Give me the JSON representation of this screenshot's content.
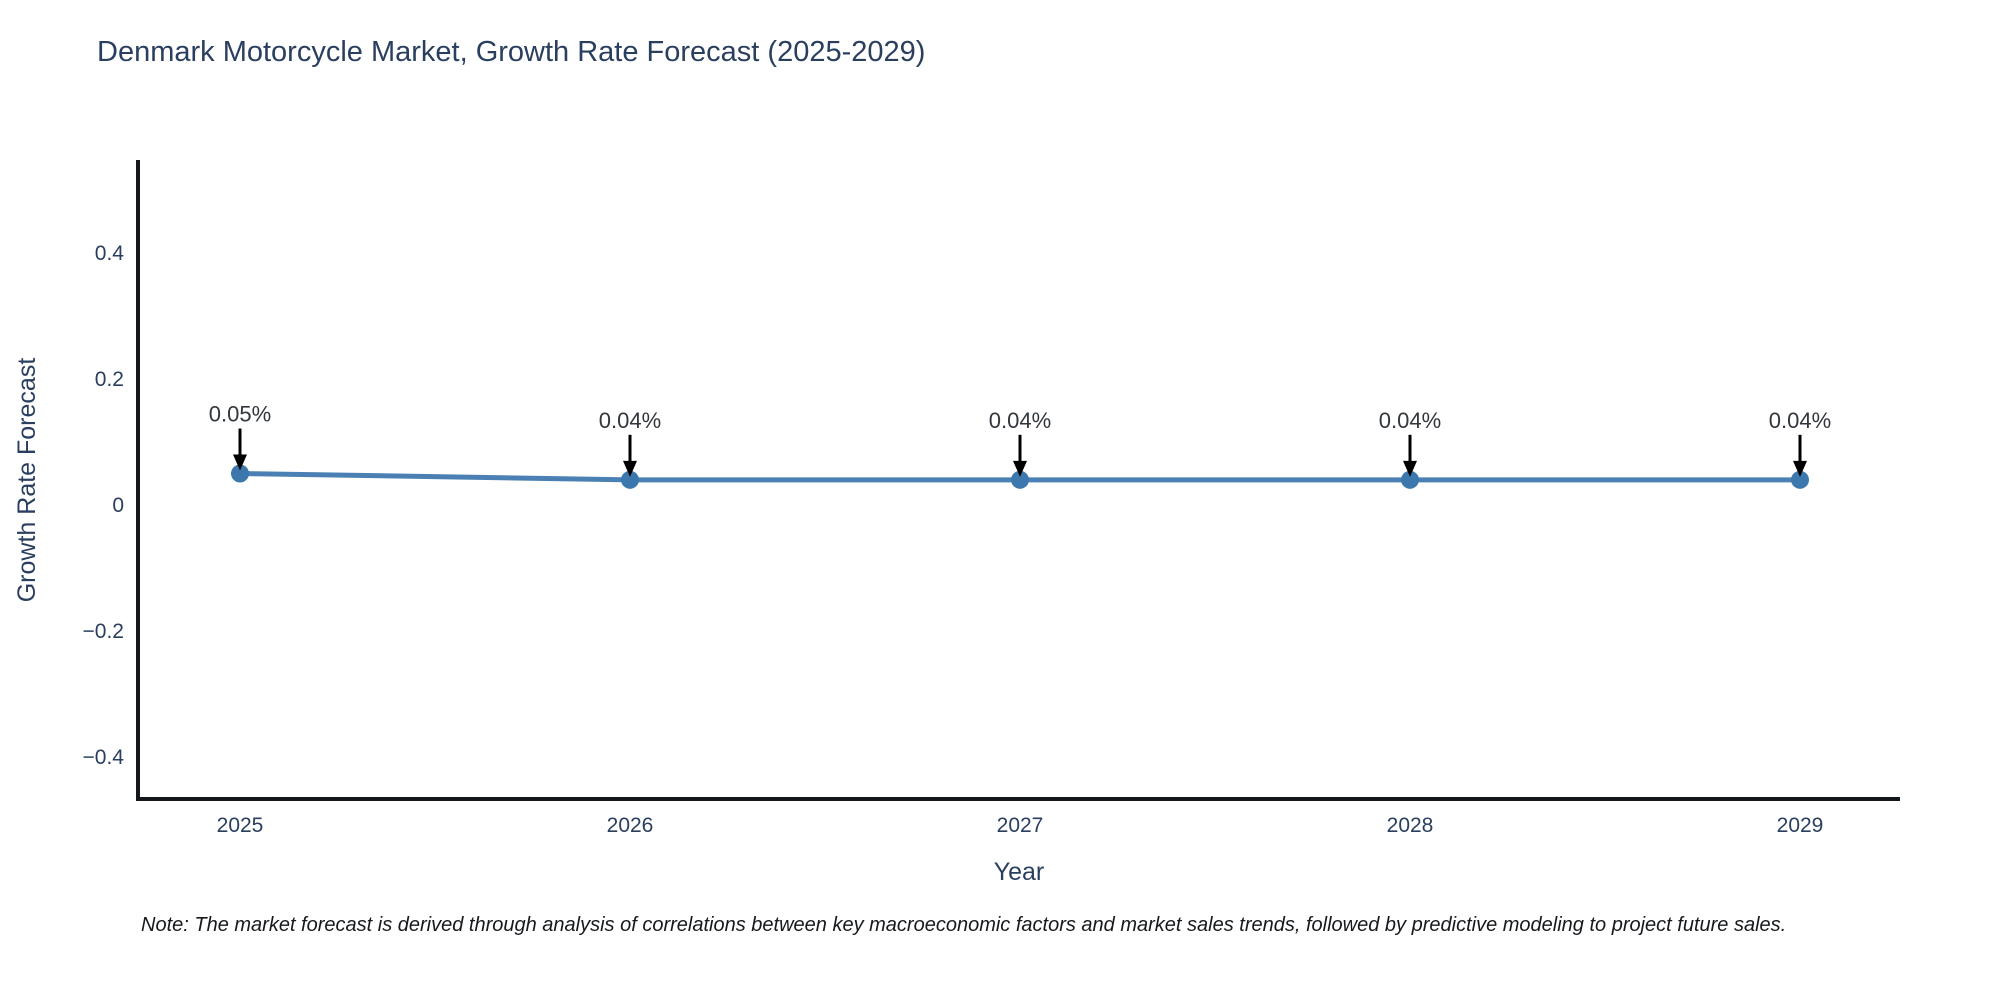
{
  "title": "Denmark Motorcycle Market, Growth Rate Forecast (2025-2029)",
  "note": "Note: The market forecast is derived through analysis of correlations between key macroeconomic factors and market sales trends, followed by predictive modeling to project future sales.",
  "chart_data": {
    "type": "line",
    "title": "Denmark Motorcycle Market, Growth Rate Forecast (2025-2029)",
    "xlabel": "Year",
    "ylabel": "Growth Rate Forecast",
    "categories": [
      "2025",
      "2026",
      "2027",
      "2028",
      "2029"
    ],
    "series": [
      {
        "name": "Growth Rate Forecast",
        "values": [
          0.05,
          0.04,
          0.04,
          0.04,
          0.04
        ]
      }
    ],
    "point_labels": [
      "0.05%",
      "0.04%",
      "0.04%",
      "0.04%",
      "0.04%"
    ],
    "yticks": [
      0.4,
      0.2,
      0,
      -0.2,
      -0.4
    ],
    "ytick_labels": [
      "0.4",
      "0.2",
      "0",
      "−0.2",
      "−0.4"
    ],
    "ylim": [
      -0.467,
      0.548
    ],
    "grid": false,
    "legend": false,
    "annotation_arrows": "black-down-arrow-to-each-point",
    "colors": {
      "line": "#4a80b4",
      "marker": "#3c77ae",
      "axis": "#14181d",
      "tick_text": "#2a3f5f",
      "annotation_text": "#32373d",
      "arrow": "#000000",
      "background": "#ffffff"
    }
  }
}
